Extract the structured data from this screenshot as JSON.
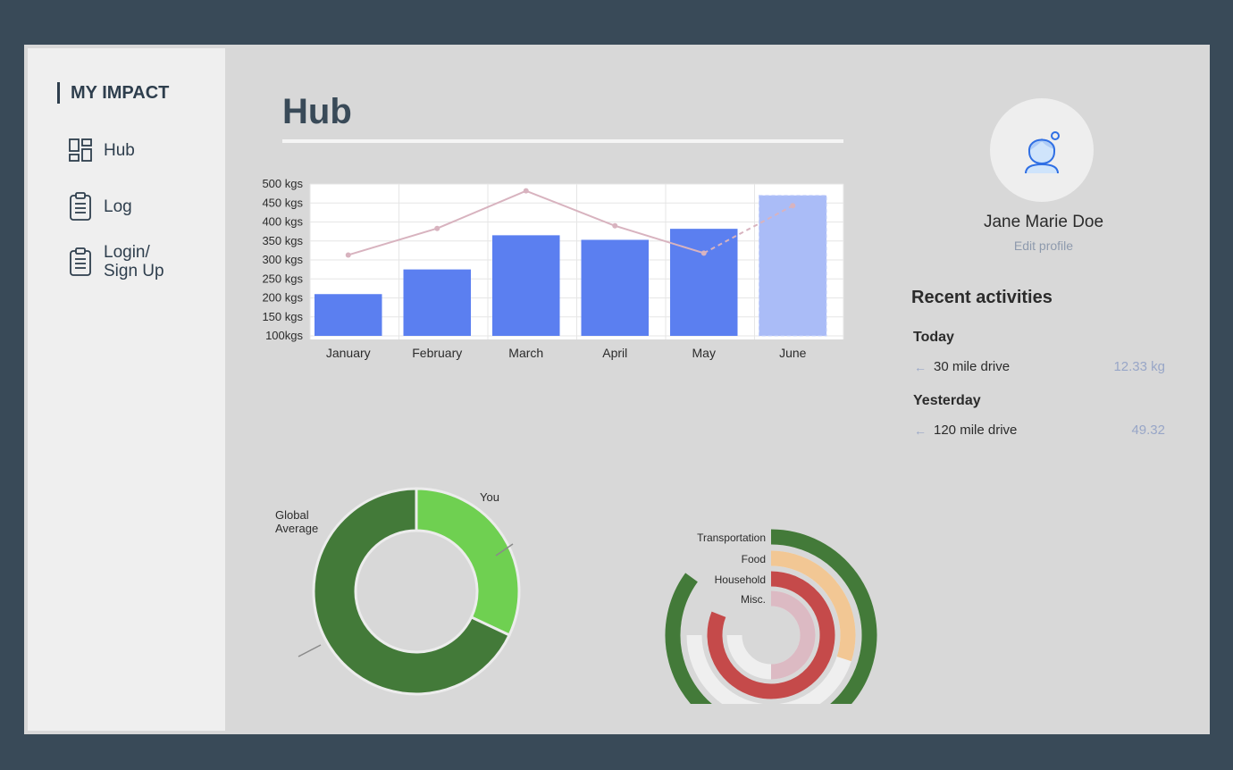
{
  "sidebar": {
    "brand": "MY IMPACT",
    "items": [
      {
        "label": "Hub",
        "icon": "dashboard-grid-icon"
      },
      {
        "label": "Log",
        "icon": "clipboard-icon"
      },
      {
        "label": "Login/",
        "label2": "Sign Up",
        "icon": "clipboard-icon"
      }
    ]
  },
  "main": {
    "title": "Hub"
  },
  "profile": {
    "name": "Jane Marie Doe",
    "edit_label": "Edit profile",
    "recent_title": "Recent activities",
    "groups": [
      {
        "day": "Today",
        "activities": [
          {
            "name": "30 mile drive",
            "amount": "12.33 kg"
          }
        ]
      },
      {
        "day": "Yesterday",
        "activities": [
          {
            "name": "120 mile drive",
            "amount": "49.32"
          }
        ]
      }
    ]
  },
  "colors": {
    "bar": "#5b7ff0",
    "bar_projected": "#aabcf7",
    "line": "#d8b3bf",
    "donut_you": "#6fd051",
    "donut_global": "#437a39",
    "transportation": "#437a39",
    "food": "#f2c794",
    "household": "#c54a4a",
    "misc": "#dcbac3",
    "ring_track": "#efefef"
  },
  "chart_data": [
    {
      "type": "bar",
      "categories": [
        "January",
        "February",
        "March",
        "April",
        "May",
        "June"
      ],
      "values": [
        210,
        275,
        365,
        353,
        382,
        470
      ],
      "projected": [
        false,
        false,
        false,
        false,
        false,
        true
      ],
      "line": [
        313,
        383,
        482,
        390,
        318,
        443
      ],
      "line_projected_from_index": 4,
      "ytick_labels": [
        "100kgs",
        "150 kgs",
        "200 kgs",
        "250 kgs",
        "300 kgs",
        "350 kgs",
        "400 kgs",
        "450 kgs",
        "500 kgs"
      ],
      "yticks": [
        100,
        150,
        200,
        250,
        300,
        350,
        400,
        450,
        500
      ],
      "ylim": [
        100,
        500
      ],
      "grid": true
    },
    {
      "type": "pie",
      "labels": [
        "You",
        "Global Average"
      ],
      "label_lines": [
        [
          "You"
        ],
        [
          "Global",
          "Average"
        ]
      ],
      "values": [
        32,
        68
      ]
    },
    {
      "type": "radial-bar",
      "categories": [
        "Transportation",
        "Food",
        "Household",
        "Misc."
      ],
      "fractions": [
        0.85,
        0.3,
        0.81,
        0.5
      ],
      "track_fraction": 0.75
    }
  ]
}
